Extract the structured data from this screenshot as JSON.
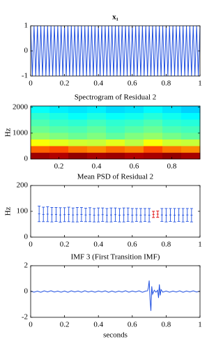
{
  "chart_data": [
    {
      "type": "line",
      "title": "x₁",
      "color": "#1f4fe0",
      "x": [
        0,
        0.01,
        0.02,
        0.03,
        0.04,
        0.05,
        0.06,
        0.07,
        0.08,
        0.09,
        0.1,
        0.11,
        0.12,
        0.13,
        0.14,
        0.15,
        0.16,
        0.17,
        0.18,
        0.19,
        0.2,
        0.21,
        0.22,
        0.23,
        0.24,
        0.25,
        0.26,
        0.27,
        0.28,
        0.29,
        0.3,
        0.31,
        0.32,
        0.33,
        0.34,
        0.35,
        0.36,
        0.37,
        0.38,
        0.39,
        0.4,
        0.41,
        0.42,
        0.43,
        0.44,
        0.45,
        0.46,
        0.47,
        0.48,
        0.49,
        0.5,
        0.51,
        0.52,
        0.53,
        0.54,
        0.55,
        0.56,
        0.57,
        0.58,
        0.59,
        0.6,
        0.61,
        0.62,
        0.63,
        0.64,
        0.65,
        0.66,
        0.67,
        0.68,
        0.69,
        0.7,
        0.71,
        0.72,
        0.73,
        0.74,
        0.75,
        0.76,
        0.77,
        0.78,
        0.79,
        0.8,
        0.81,
        0.82,
        0.83,
        0.84,
        0.85,
        0.86,
        0.87,
        0.88,
        0.89,
        0.9,
        0.91,
        0.92,
        0.93,
        0.94,
        0.95,
        0.96,
        0.97,
        0.98,
        0.99,
        1
      ],
      "values": [
        1,
        -1,
        1,
        -1,
        1,
        -1,
        1,
        -1,
        1,
        -1,
        1,
        -1,
        1,
        -1,
        1,
        -1,
        1,
        -1,
        1,
        -1,
        1,
        -1,
        1,
        -1,
        1,
        -1,
        1,
        -1,
        1,
        -1,
        1,
        -1,
        1,
        -1,
        1,
        -1,
        1,
        -1,
        1,
        -1,
        1,
        -1,
        1,
        -1,
        1,
        -1,
        1,
        -1,
        1,
        -1,
        1,
        -1,
        1,
        -1,
        1,
        -1,
        1,
        -1,
        1,
        -1,
        1,
        -1,
        1,
        -1,
        1,
        -1,
        1,
        -1,
        1,
        -1,
        1,
        -1,
        1,
        -1,
        1,
        -1,
        1,
        -1,
        1,
        -1,
        1,
        -1,
        1,
        -1,
        1,
        -1,
        1,
        -1,
        1,
        -1,
        1,
        -1,
        1,
        -1,
        1,
        -1,
        1,
        -1,
        1,
        -1,
        1
      ],
      "xlim": [
        0,
        1
      ],
      "xticks": [
        0,
        0.2,
        0.4,
        0.6,
        0.8,
        1
      ],
      "ylim": [
        -1,
        1
      ],
      "yticks": [
        -1,
        0,
        1
      ]
    },
    {
      "type": "heatmap",
      "title": "Spectrogram of Residual 2",
      "ylabel": "Hz",
      "x": [
        0.1,
        0.2,
        0.3,
        0.4,
        0.5,
        0.6,
        0.7,
        0.8,
        0.9
      ],
      "y": [
        128,
        384,
        640,
        896,
        1152,
        1408,
        1664,
        1920
      ],
      "z": [
        [
          0.97,
          0.95,
          0.98,
          0.96,
          0.97,
          0.95,
          0.96,
          0.98,
          0.96
        ],
        [
          0.78,
          0.8,
          0.76,
          0.74,
          0.77,
          0.75,
          0.8,
          0.76,
          0.74
        ],
        [
          0.62,
          0.6,
          0.58,
          0.57,
          0.6,
          0.56,
          0.62,
          0.58,
          0.57
        ],
        [
          0.52,
          0.5,
          0.48,
          0.5,
          0.47,
          0.5,
          0.52,
          0.49,
          0.47
        ],
        [
          0.48,
          0.46,
          0.45,
          0.47,
          0.44,
          0.46,
          0.48,
          0.45,
          0.44
        ],
        [
          0.45,
          0.43,
          0.42,
          0.44,
          0.42,
          0.43,
          0.45,
          0.42,
          0.41
        ],
        [
          0.42,
          0.4,
          0.38,
          0.4,
          0.38,
          0.39,
          0.41,
          0.39,
          0.37
        ],
        [
          0.38,
          0.36,
          0.35,
          0.36,
          0.34,
          0.35,
          0.37,
          0.35,
          0.33
        ]
      ],
      "clim": [
        0,
        1
      ],
      "xlim": [
        0.05,
        0.95
      ],
      "xticks": [
        0.2,
        0.4,
        0.6,
        0.8
      ],
      "ylim": [
        0,
        2048
      ],
      "yticks": [
        0,
        1000,
        2000
      ]
    },
    {
      "type": "errorbar",
      "title": "Mean PSD of Residual 2",
      "ylabel": "Hz",
      "series": [
        {
          "color": "#1f4fe0",
          "x": [
            0.05,
            0.075,
            0.1,
            0.125,
            0.15,
            0.175,
            0.2,
            0.225,
            0.25,
            0.275,
            0.3,
            0.325,
            0.35,
            0.375,
            0.4,
            0.425,
            0.45,
            0.475,
            0.5,
            0.525,
            0.55,
            0.575,
            0.6,
            0.625,
            0.65,
            0.675,
            0.7,
            0.775,
            0.8,
            0.825,
            0.85,
            0.875,
            0.9,
            0.925,
            0.95
          ],
          "values": [
            90,
            88,
            89,
            87,
            88,
            86,
            87,
            88,
            86,
            87,
            88,
            86,
            87,
            85,
            86,
            87,
            85,
            86,
            87,
            85,
            86,
            87,
            85,
            86,
            85,
            86,
            85,
            86,
            85,
            86,
            85,
            86,
            85,
            86,
            85
          ],
          "errors": [
            30,
            28,
            29,
            28,
            27,
            28,
            27,
            28,
            27,
            28,
            27,
            26,
            27,
            26,
            27,
            26,
            26,
            27,
            26,
            26,
            27,
            26,
            26,
            25,
            26,
            25,
            26,
            25,
            26,
            25,
            26,
            25,
            26,
            25,
            26
          ]
        },
        {
          "color": "#e01010",
          "x": [
            0.725,
            0.75
          ],
          "values": [
            88,
            89
          ],
          "errors": [
            12,
            12
          ]
        }
      ],
      "xlim": [
        0,
        1
      ],
      "xticks": [
        0,
        0.2,
        0.4,
        0.6,
        0.8,
        1
      ],
      "ylim": [
        0,
        200
      ],
      "yticks": [
        0,
        100,
        200
      ]
    },
    {
      "type": "line",
      "title": "IMF 3 (First Transition IMF)",
      "xlabel": "seconds",
      "color": "#1f4fe0",
      "x": [
        0,
        0.02,
        0.04,
        0.06,
        0.08,
        0.1,
        0.12,
        0.14,
        0.16,
        0.18,
        0.2,
        0.22,
        0.24,
        0.26,
        0.28,
        0.3,
        0.32,
        0.34,
        0.36,
        0.38,
        0.4,
        0.42,
        0.44,
        0.46,
        0.48,
        0.5,
        0.52,
        0.54,
        0.56,
        0.58,
        0.6,
        0.62,
        0.64,
        0.66,
        0.68,
        0.69,
        0.695,
        0.7,
        0.705,
        0.71,
        0.715,
        0.72,
        0.73,
        0.74,
        0.75,
        0.755,
        0.76,
        0.765,
        0.77,
        0.78,
        0.8,
        0.82,
        0.84,
        0.86,
        0.88,
        0.9,
        0.92,
        0.94,
        0.96,
        0.98,
        1
      ],
      "values": [
        0.04,
        -0.05,
        0.03,
        -0.06,
        0.05,
        -0.03,
        0.06,
        -0.04,
        0.03,
        -0.05,
        0.04,
        -0.06,
        0.05,
        -0.03,
        0.04,
        -0.05,
        0.06,
        -0.04,
        0.03,
        -0.05,
        0.04,
        -0.03,
        0.05,
        -0.06,
        0.04,
        -0.05,
        0.03,
        -0.04,
        0.06,
        -0.05,
        0.04,
        -0.03,
        0.05,
        -0.06,
        0.04,
        0.05,
        0.3,
        0.85,
        -0.6,
        -1.5,
        0.4,
        -0.2,
        0.1,
        -0.05,
        0.1,
        -0.5,
        0.55,
        -0.3,
        0.15,
        -0.05,
        0.04,
        -0.05,
        0.03,
        -0.04,
        0.05,
        -0.06,
        0.04,
        -0.03,
        0.05,
        -0.04,
        0.03
      ],
      "xlim": [
        0,
        1
      ],
      "xticks": [
        0,
        0.2,
        0.4,
        0.6,
        0.8,
        1
      ],
      "ylim": [
        -2,
        2
      ],
      "yticks": [
        -2,
        0,
        2
      ]
    }
  ]
}
